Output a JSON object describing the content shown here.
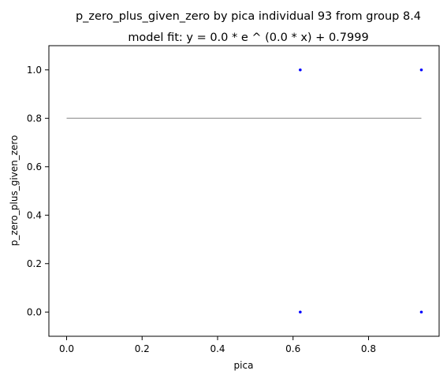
{
  "chart_data": {
    "type": "scatter",
    "title": "p_zero_plus_given_zero by pica individual 93 from group 8.4",
    "subtitle": "model fit: y = 0.0 * e ^ (0.0 * x) + 0.7999",
    "xlabel": "pica",
    "ylabel": "p_zero_plus_given_zero",
    "xlim": [
      -0.047,
      0.987
    ],
    "ylim": [
      -0.1,
      1.1
    ],
    "xticks": [
      "0.0",
      "0.2",
      "0.4",
      "0.6",
      "0.8"
    ],
    "yticks": [
      "0.0",
      "0.2",
      "0.4",
      "0.6",
      "0.8",
      "1.0"
    ],
    "grid": false,
    "series": [
      {
        "kind": "points",
        "color": "#0000ff",
        "points": [
          {
            "x": 0.619,
            "y": 1.0
          },
          {
            "x": 0.94,
            "y": 1.0
          },
          {
            "x": 0.619,
            "y": 0.0
          },
          {
            "x": 0.94,
            "y": 0.0
          }
        ]
      },
      {
        "kind": "fit-line",
        "color": "#aaaaaa",
        "x": [
          0.0,
          0.94
        ],
        "y": [
          0.7999,
          0.7999
        ]
      }
    ]
  }
}
